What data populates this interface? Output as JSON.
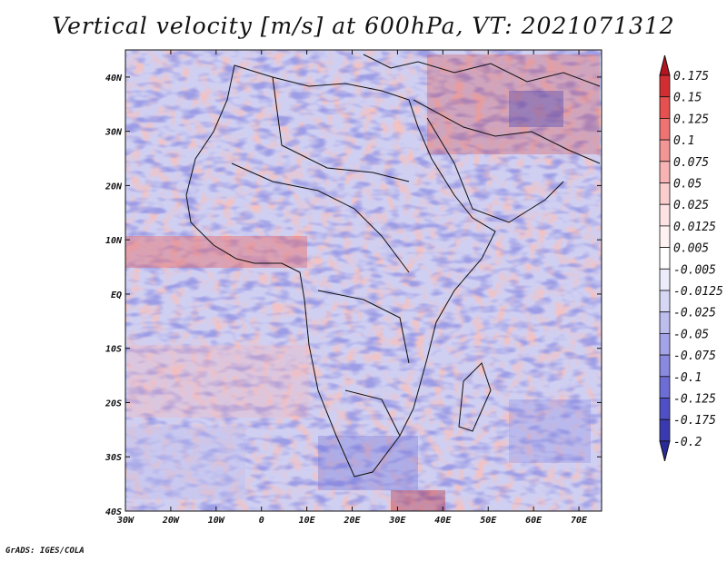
{
  "title": "Vertical velocity [m/s] at 600hPa, VT: 2021071312",
  "footer": "GrADS: IGES/COLA",
  "map": {
    "lat_labels": [
      "40N",
      "30N",
      "20N",
      "10N",
      "EQ",
      "10S",
      "20S",
      "30S",
      "40S"
    ],
    "lon_labels": [
      "30W",
      "20W",
      "10W",
      "0",
      "10E",
      "20E",
      "30E",
      "40E",
      "50E",
      "60E",
      "70E"
    ],
    "extent": {
      "lon": [
        -30,
        75
      ],
      "lat": [
        -40,
        45
      ]
    }
  },
  "colorbar": {
    "labels": [
      "0.175",
      "0.15",
      "0.125",
      "0.1",
      "0.075",
      "0.05",
      "0.025",
      "0.0125",
      "0.005",
      "-0.005",
      "-0.0125",
      "-0.025",
      "-0.05",
      "-0.075",
      "-0.1",
      "-0.125",
      "-0.175",
      "-0.2"
    ],
    "colors": [
      "#b4141e",
      "#d22d32",
      "#e65050",
      "#f07373",
      "#f59696",
      "#f8b4b4",
      "#fbcdcd",
      "#fde3e3",
      "#fff2f2",
      "#ffffff",
      "#ececfb",
      "#d6d6f5",
      "#bdbdee",
      "#a3a3e8",
      "#8989e0",
      "#6d6dd6",
      "#4f4fc6",
      "#3a3ab0",
      "#2a2a9a"
    ]
  }
}
